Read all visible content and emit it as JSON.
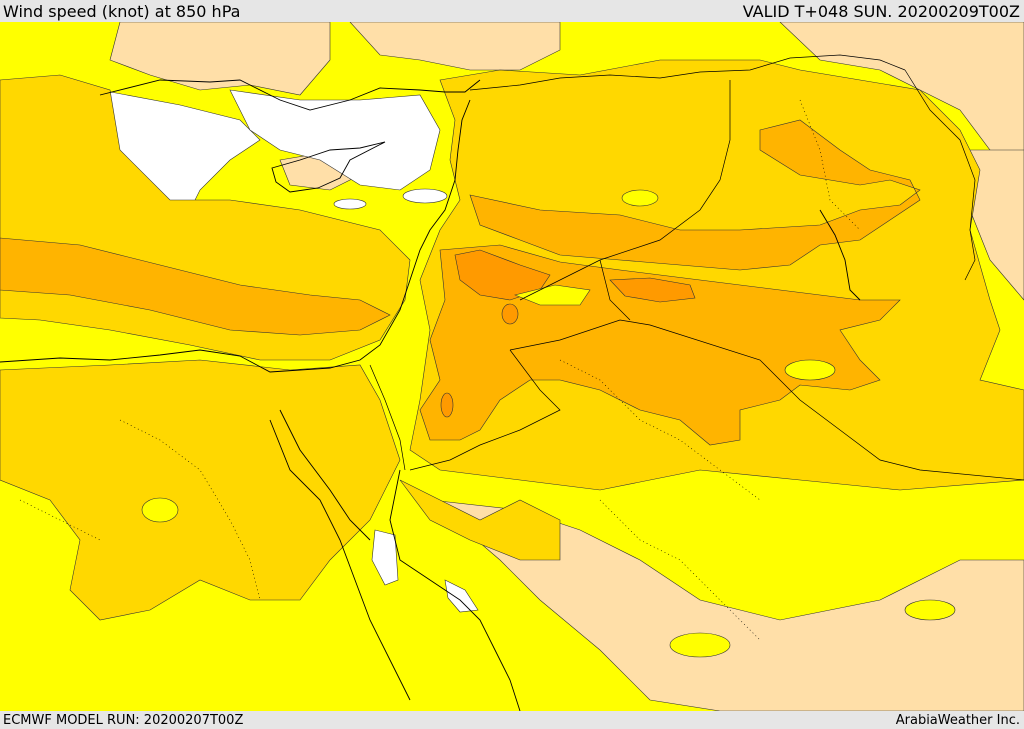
{
  "header": {
    "title": "Wind speed (knot) at 850 hPa",
    "valid": "VALID T+048 SUN. 20200209T00Z"
  },
  "footer": {
    "model_run": "ECMWF MODEL RUN: 20200207T00Z",
    "credit": "ArabiaWeather Inc."
  },
  "colors": {
    "calm": "#ffffff",
    "light": "#ffdfa8",
    "low": "#ffff00",
    "moderate": "#ffd800",
    "fresh": "#ffb400",
    "strong": "#ff9a00",
    "border": "#000000"
  }
}
